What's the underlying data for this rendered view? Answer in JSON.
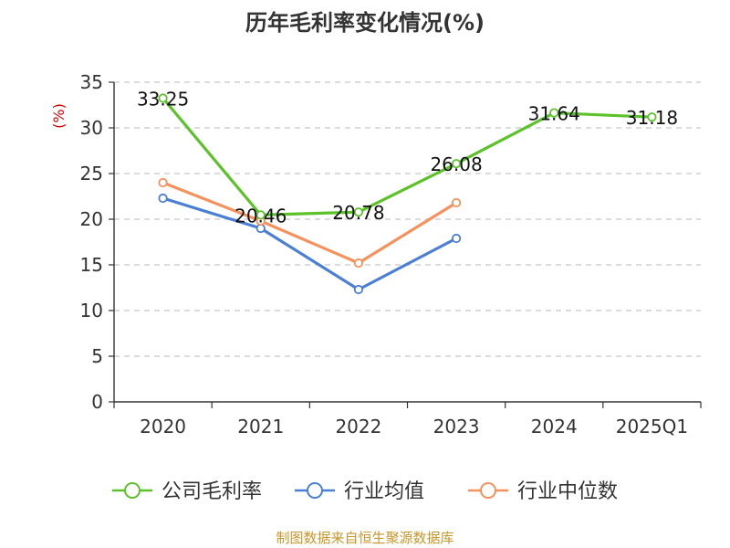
{
  "chart_data": {
    "type": "line",
    "title": "历年毛利率变化情况(%)",
    "ylabel": "(%)",
    "categories": [
      "2020",
      "2021",
      "2022",
      "2023",
      "2024",
      "2025Q1"
    ],
    "ylim": [
      0,
      35
    ],
    "yticks": [
      "0",
      "5",
      "10",
      "15",
      "20",
      "25",
      "30",
      "35"
    ],
    "grid": true,
    "legend_position": "bottom",
    "series": [
      {
        "name": "公司毛利率",
        "color": "#5cc22a",
        "values": [
          33.25,
          20.46,
          20.78,
          26.08,
          31.64,
          31.18
        ],
        "labels": [
          "33.25",
          "20.46",
          "20.78",
          "26.08",
          "31.64",
          "31.18"
        ]
      },
      {
        "name": "行业均值",
        "color": "#4a7fd6",
        "values": [
          22.3,
          19.0,
          12.3,
          17.9,
          null,
          null
        ]
      },
      {
        "name": "行业中位数",
        "color": "#f5915c",
        "values": [
          24.0,
          19.8,
          15.2,
          21.8,
          null,
          null
        ]
      }
    ],
    "source": "制图数据来自恒生聚源数据库",
    "colors": {
      "unit": "#d40000",
      "source": "#c8962a",
      "grid": "#c8c8c8",
      "axis": "#333333"
    }
  }
}
